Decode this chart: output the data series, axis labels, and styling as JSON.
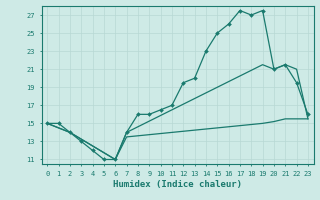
{
  "xlabel": "Humidex (Indice chaleur)",
  "ylabel": "",
  "bg_color": "#ceeae6",
  "line_color": "#1a7a6e",
  "grid_color": "#b8d8d4",
  "xlim": [
    -0.5,
    23.5
  ],
  "ylim": [
    10.5,
    28
  ],
  "yticks": [
    11,
    13,
    15,
    17,
    19,
    21,
    23,
    25,
    27
  ],
  "xticks": [
    0,
    1,
    2,
    3,
    4,
    5,
    6,
    7,
    8,
    9,
    10,
    11,
    12,
    13,
    14,
    15,
    16,
    17,
    18,
    19,
    20,
    21,
    22,
    23
  ],
  "line1_x": [
    0,
    1,
    2,
    3,
    4,
    5,
    6,
    7,
    8,
    9,
    10,
    11,
    12,
    13,
    14,
    15,
    16,
    17,
    18,
    19,
    20,
    21,
    22,
    23
  ],
  "line1_y": [
    15,
    15,
    14,
    13,
    12,
    11,
    11,
    14,
    16,
    16,
    16.5,
    17,
    19.5,
    20,
    23,
    25,
    26,
    27.5,
    27,
    27.5,
    21,
    21.5,
    19.5,
    16
  ],
  "line2_x": [
    0,
    2,
    6,
    7,
    19,
    20,
    21,
    22,
    23
  ],
  "line2_y": [
    15,
    14,
    11,
    14,
    21.5,
    21,
    21.5,
    21,
    15.5
  ],
  "line3_x": [
    0,
    2,
    6,
    7,
    19,
    20,
    21,
    22,
    23
  ],
  "line3_y": [
    15,
    14,
    11,
    13.5,
    15,
    15.2,
    15.5,
    15.5,
    15.5
  ]
}
